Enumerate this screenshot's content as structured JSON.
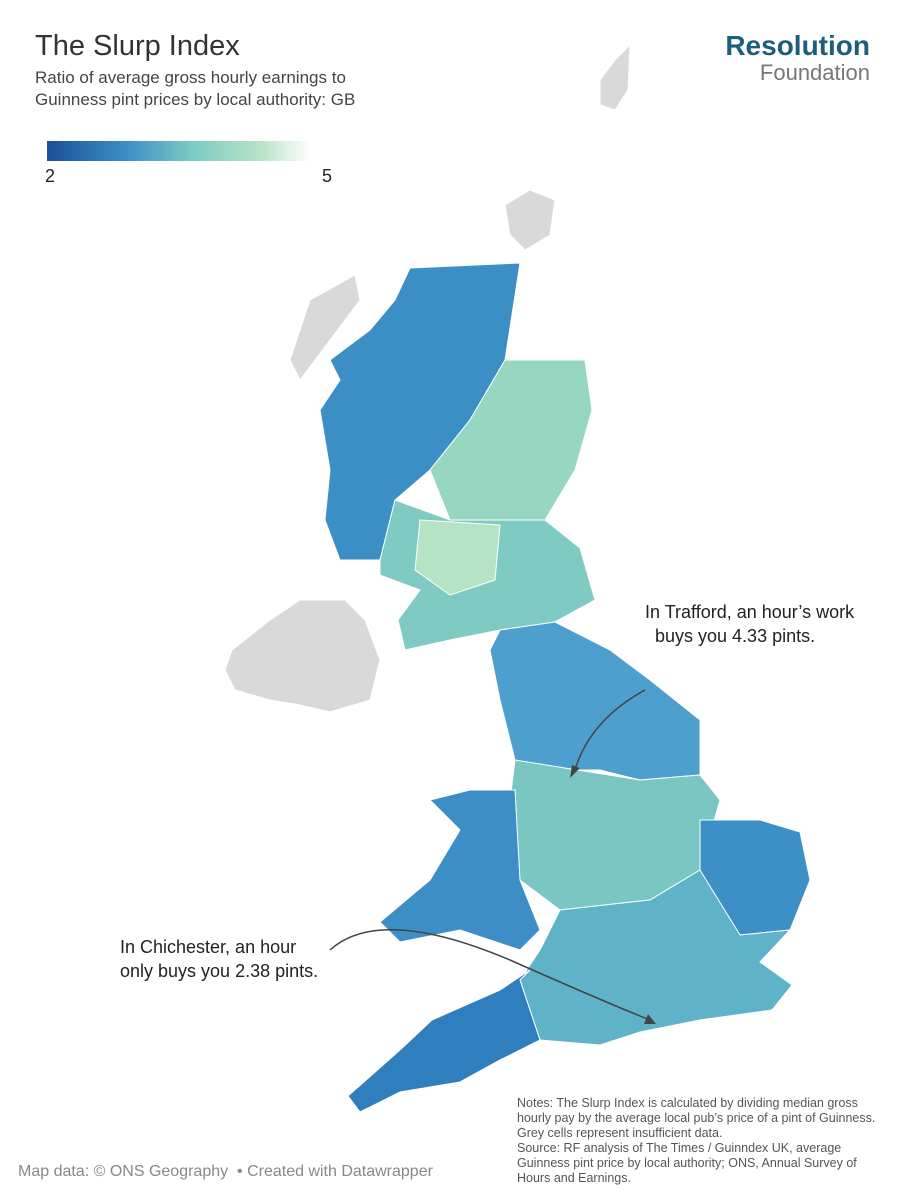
{
  "header": {
    "title": "The Slurp Index",
    "subtitle": [
      "Ratio of average gross hourly earnings to",
      "Guinness pint prices by local authority: GB"
    ]
  },
  "logo": {
    "name": "Resolution",
    "sub": "Foundation"
  },
  "legend": {
    "min": 2,
    "max": 5
  },
  "annotations": [
    {
      "lines": [
        "In Trafford, an hour’s work",
        "buys you 4.33 pints."
      ]
    },
    {
      "lines": [
        "In Chichester, an hour",
        "only buys you 2.38 pints."
      ]
    }
  ],
  "notes": [
    "Notes: The Slurp Index is calculated by dividing median gross hourly pay by the average local pub’s price of a pint of Guinness. Grey cells represent insufficient data.",
    "Source: RF analysis of The Times / Guinndex UK, average Guinness pint price by local authority; ONS, Annual Survey of Hours and Earnings."
  ],
  "footer": [
    "Map data: © ONS Geography",
    "• Created with Datawrapper"
  ]
}
